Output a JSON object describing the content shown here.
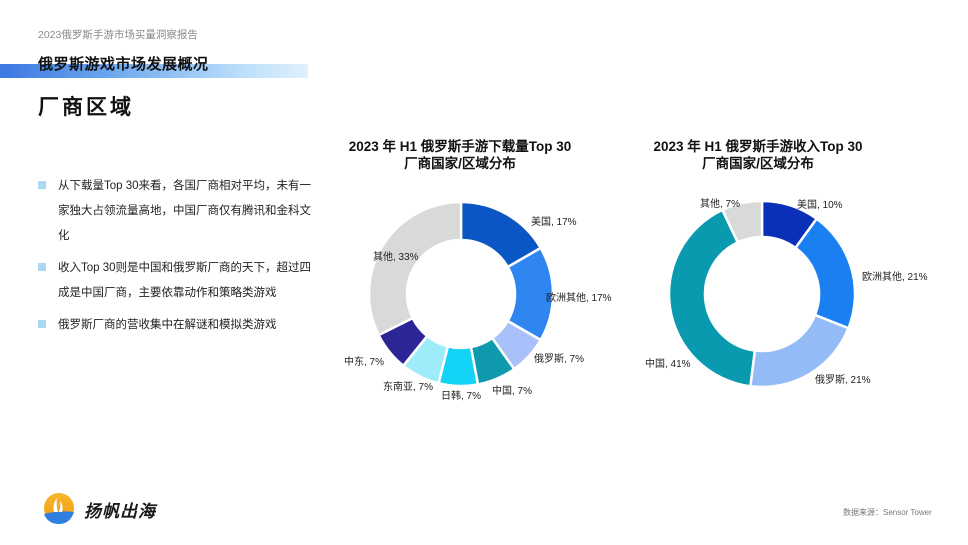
{
  "header": {
    "report_title": "2023俄罗斯手游市场买量洞察报告",
    "section_title": "俄罗斯游戏市场发展概况",
    "page_title": "厂商区域"
  },
  "bullets": [
    "从下载量Top 30来看，各国厂商相对平均，未有一家独大占领流量高地，中国厂商仅有腾讯和金科文化",
    "收入Top 30则是中国和俄罗斯厂商的天下，超过四成是中国厂商，主要依靠动作和策略类游戏",
    "俄罗斯厂商的营收集中在解谜和模拟类游戏"
  ],
  "footer": {
    "logo_text": "扬帆出海",
    "source": "数据来源：Sensor Tower"
  },
  "chart_data": [
    {
      "type": "pie",
      "subtype": "donut",
      "title_line1": "2023 年 H1 俄罗斯手游下载量Top 30",
      "title_line2": "厂商国家/区域分布",
      "categories": [
        "美国",
        "欧洲其他",
        "俄罗斯",
        "中国",
        "日韩",
        "东南亚",
        "中东",
        "其他"
      ],
      "values": [
        17,
        17,
        7,
        7,
        7,
        7,
        7,
        33
      ],
      "unit": "%",
      "colors": [
        "#0a56c4",
        "#2f86f0",
        "#a9c1fa",
        "#0f9aae",
        "#12d2f5",
        "#9eebfa",
        "#2c2596",
        "#d9d9d9"
      ],
      "labels": [
        "美国, 17%",
        "欧洲其他, 17%",
        "俄罗斯, 7%",
        "中国, 7%",
        "日韩, 7%",
        "东南亚, 7%",
        "中东, 7%",
        "其他, 33%"
      ]
    },
    {
      "type": "pie",
      "subtype": "donut",
      "title_line1": "2023 年 H1 俄罗斯手游收入Top 30",
      "title_line2": "厂商国家/区域分布",
      "categories": [
        "美国",
        "欧洲其他",
        "俄罗斯",
        "中国",
        "其他"
      ],
      "values": [
        10,
        21,
        21,
        41,
        7
      ],
      "unit": "%",
      "colors": [
        "#0a2fb8",
        "#1a7ff0",
        "#93bcf7",
        "#0a9ab0",
        "#d9d9d9"
      ],
      "labels": [
        "美国, 10%",
        "欧洲其他, 21%",
        "俄罗斯, 21%",
        "中国, 41%",
        "其他, 7%"
      ]
    }
  ]
}
